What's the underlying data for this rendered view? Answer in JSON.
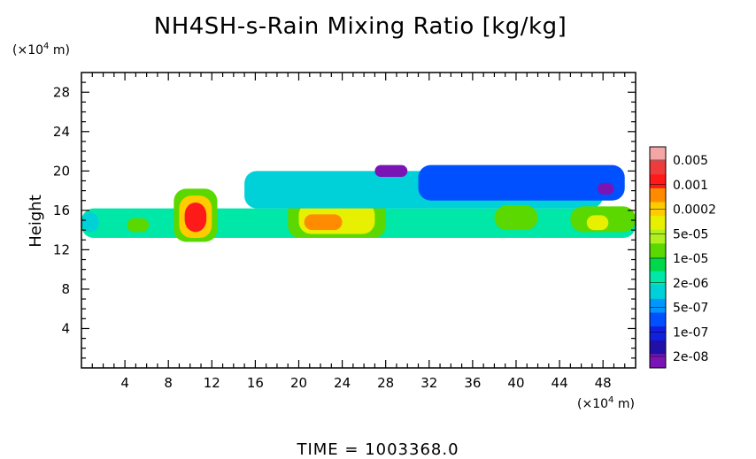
{
  "chart_data": {
    "type": "heatmap",
    "title": "NH4SH-s-Rain Mixing Ratio [kg/kg]",
    "ylabel": "Height",
    "y_unit_prefix": "(×10",
    "y_unit_exp": "4",
    "y_unit_suffix": " m)",
    "x_unit_prefix": "(×10",
    "x_unit_exp": "4",
    "x_unit_suffix": " m)",
    "xlim": [
      0,
      51
    ],
    "ylim": [
      0,
      30
    ],
    "x_ticks": [
      4,
      8,
      12,
      16,
      20,
      24,
      28,
      32,
      36,
      40,
      44,
      48
    ],
    "x_tick_labels": [
      "4",
      "8",
      "12",
      "16",
      "20",
      "24",
      "28",
      "32",
      "36",
      "40",
      "44",
      "48"
    ],
    "y_ticks": [
      4,
      8,
      12,
      16,
      20,
      24,
      28
    ],
    "y_tick_labels": [
      "4",
      "8",
      "12",
      "16",
      "20",
      "24",
      "28"
    ],
    "colorbar": {
      "labels": [
        "0.005",
        "0.001",
        "0.0002",
        "5e-05",
        "1e-05",
        "2e-06",
        "5e-07",
        "1e-07",
        "2e-08"
      ],
      "colors_top_to_bottom": [
        "#f4a6a6",
        "#ee3c3c",
        "#ff1a1a",
        "#ff8c00",
        "#ffcc00",
        "#e6f000",
        "#b0f020",
        "#5ad800",
        "#00d84a",
        "#00e8a8",
        "#00d0d8",
        "#0096ff",
        "#0050ff",
        "#1020e0",
        "#2010a8",
        "#7a14b4"
      ]
    },
    "regions": [
      {
        "x0": 0,
        "x1": 51,
        "y0": 13.2,
        "y1": 16.2,
        "level": 6
      },
      {
        "x0": 0,
        "x1": 1.6,
        "y0": 13.8,
        "y1": 15.8,
        "level": 5
      },
      {
        "x0": 4.2,
        "x1": 6.2,
        "y0": 13.8,
        "y1": 15.2,
        "level": 8
      },
      {
        "x0": 8.5,
        "x1": 12.5,
        "y0": 12.8,
        "y1": 18.2,
        "level": 8
      },
      {
        "x0": 9,
        "x1": 12,
        "y0": 13.2,
        "y1": 17.5,
        "level": 11
      },
      {
        "x0": 9.5,
        "x1": 11.5,
        "y0": 13.8,
        "y1": 16.8,
        "level": 13
      },
      {
        "x0": 19,
        "x1": 28,
        "y0": 13.2,
        "y1": 17.8,
        "level": 8
      },
      {
        "x0": 20,
        "x1": 27,
        "y0": 13.6,
        "y1": 16.8,
        "level": 10
      },
      {
        "x0": 20.5,
        "x1": 24,
        "y0": 14,
        "y1": 15.6,
        "level": 12
      },
      {
        "x0": 24.5,
        "x1": 27,
        "y0": 14,
        "y1": 16,
        "level": 10
      },
      {
        "x0": 15,
        "x1": 48,
        "y0": 16.2,
        "y1": 20,
        "level": 5
      },
      {
        "x0": 31,
        "x1": 50,
        "y0": 17,
        "y1": 20.6,
        "level": 3
      },
      {
        "x0": 38,
        "x1": 42,
        "y0": 14,
        "y1": 16.5,
        "level": 8
      },
      {
        "x0": 45,
        "x1": 51,
        "y0": 13.8,
        "y1": 16.4,
        "level": 8
      },
      {
        "x0": 46.5,
        "x1": 48.5,
        "y0": 14,
        "y1": 15.5,
        "level": 10
      },
      {
        "x0": 27,
        "x1": 30,
        "y0": 19.4,
        "y1": 20.6,
        "level": 0
      },
      {
        "x0": 47.5,
        "x1": 49,
        "y0": 17.6,
        "y1": 18.8,
        "level": 0
      }
    ]
  },
  "footer": {
    "time_text": "TIME  =  1003368.0"
  }
}
